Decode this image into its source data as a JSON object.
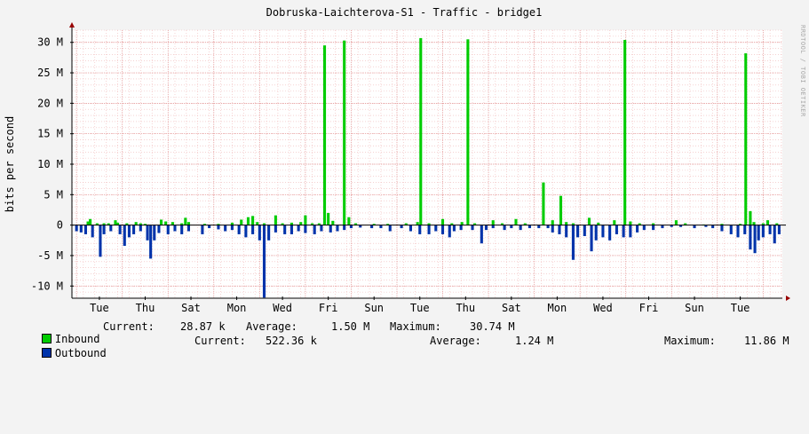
{
  "title": "Dobruska-Laichterova-S1 - Traffic - bridge1",
  "watermark": "RRDTOOL / TOBI OETIKER",
  "chart_data": {
    "type": "area",
    "title": "Dobruska-Laichterova-S1 - Traffic - bridge1",
    "ylabel": "bits per second",
    "xlabel": "",
    "y_unit": "bits per second (M = 1,000,000)",
    "ylim": [
      -12000000,
      32000000
    ],
    "yticks": [
      {
        "value": 30000000,
        "label": "30 M"
      },
      {
        "value": 25000000,
        "label": "25 M"
      },
      {
        "value": 20000000,
        "label": "20 M"
      },
      {
        "value": 15000000,
        "label": "15 M"
      },
      {
        "value": 10000000,
        "label": "10 M"
      },
      {
        "value": 5000000,
        "label": "5 M"
      },
      {
        "value": 0,
        "label": "0"
      },
      {
        "value": -5000000,
        "label": "-5 M"
      },
      {
        "value": -10000000,
        "label": "-10 M"
      }
    ],
    "xlim": [
      0,
      15.52
    ],
    "x_unit": "days since start of window",
    "xticks": [
      {
        "value": 0.6,
        "label": "Tue"
      },
      {
        "value": 1.6,
        "label": "Thu"
      },
      {
        "value": 2.6,
        "label": "Sat"
      },
      {
        "value": 3.6,
        "label": "Mon"
      },
      {
        "value": 4.6,
        "label": "Wed"
      },
      {
        "value": 5.6,
        "label": "Fri"
      },
      {
        "value": 6.6,
        "label": "Sun"
      },
      {
        "value": 7.6,
        "label": "Tue"
      },
      {
        "value": 8.6,
        "label": "Thu"
      },
      {
        "value": 9.6,
        "label": "Sat"
      },
      {
        "value": 10.6,
        "label": "Mon"
      },
      {
        "value": 11.6,
        "label": "Wed"
      },
      {
        "value": 12.6,
        "label": "Fri"
      },
      {
        "value": 13.6,
        "label": "Sun"
      },
      {
        "value": 14.6,
        "label": "Tue"
      }
    ],
    "grid": true,
    "legend_placement": "bottom",
    "series": [
      {
        "name": "Inbound",
        "color": "#00cc00",
        "direction": "up",
        "current": "28.87 k",
        "average": "1.50 M",
        "maximum": "30.74 M",
        "points": [
          [
            0.35,
            0.6
          ],
          [
            0.4,
            1.0
          ],
          [
            0.55,
            0.3
          ],
          [
            0.7,
            0.3
          ],
          [
            0.8,
            0.3
          ],
          [
            0.95,
            0.8
          ],
          [
            1.0,
            0.4
          ],
          [
            1.2,
            0.3
          ],
          [
            1.4,
            0.5
          ],
          [
            1.5,
            0.3
          ],
          [
            1.6,
            0.2
          ],
          [
            1.95,
            0.9
          ],
          [
            2.05,
            0.6
          ],
          [
            2.2,
            0.5
          ],
          [
            2.4,
            0.3
          ],
          [
            2.48,
            1.2
          ],
          [
            2.55,
            0.5
          ],
          [
            2.9,
            0.2
          ],
          [
            3.2,
            0.2
          ],
          [
            3.5,
            0.4
          ],
          [
            3.7,
            0.9
          ],
          [
            3.85,
            1.3
          ],
          [
            3.95,
            1.5
          ],
          [
            4.05,
            0.5
          ],
          [
            4.2,
            0.3
          ],
          [
            4.45,
            1.6
          ],
          [
            4.6,
            0.3
          ],
          [
            4.8,
            0.4
          ],
          [
            5.0,
            0.5
          ],
          [
            5.1,
            1.6
          ],
          [
            5.25,
            0.3
          ],
          [
            5.4,
            0.3
          ],
          [
            5.52,
            29.5
          ],
          [
            5.6,
            2.0
          ],
          [
            5.7,
            0.7
          ],
          [
            5.95,
            30.3
          ],
          [
            6.05,
            1.3
          ],
          [
            6.2,
            0.3
          ],
          [
            6.6,
            0.2
          ],
          [
            6.9,
            0.2
          ],
          [
            7.3,
            0.3
          ],
          [
            7.55,
            0.5
          ],
          [
            7.62,
            30.7
          ],
          [
            7.8,
            0.3
          ],
          [
            8.1,
            1.0
          ],
          [
            8.3,
            0.3
          ],
          [
            8.52,
            0.5
          ],
          [
            8.65,
            30.5
          ],
          [
            8.8,
            0.3
          ],
          [
            9.2,
            0.8
          ],
          [
            9.4,
            0.3
          ],
          [
            9.7,
            1.0
          ],
          [
            9.9,
            0.3
          ],
          [
            10.3,
            7.0
          ],
          [
            10.5,
            0.8
          ],
          [
            10.68,
            4.8
          ],
          [
            10.8,
            0.5
          ],
          [
            10.95,
            0.3
          ],
          [
            11.3,
            1.2
          ],
          [
            11.5,
            0.4
          ],
          [
            11.85,
            0.8
          ],
          [
            12.08,
            30.4
          ],
          [
            12.2,
            0.6
          ],
          [
            12.4,
            0.3
          ],
          [
            12.7,
            0.3
          ],
          [
            13.2,
            0.8
          ],
          [
            13.4,
            0.3
          ],
          [
            13.8,
            0.1
          ],
          [
            14.2,
            0.2
          ],
          [
            14.6,
            0.2
          ],
          [
            14.72,
            28.2
          ],
          [
            14.82,
            2.3
          ],
          [
            14.9,
            0.5
          ],
          [
            15.1,
            0.3
          ],
          [
            15.2,
            0.8
          ],
          [
            15.4,
            0.3
          ]
        ]
      },
      {
        "name": "Outbound",
        "color": "#0033aa",
        "direction": "down",
        "current": "522.36 k",
        "average": "1.24 M",
        "maximum": "11.86 M",
        "points": [
          [
            0.1,
            1.0
          ],
          [
            0.2,
            1.2
          ],
          [
            0.3,
            1.5
          ],
          [
            0.45,
            2.0
          ],
          [
            0.62,
            5.2
          ],
          [
            0.7,
            1.5
          ],
          [
            0.85,
            1.0
          ],
          [
            1.05,
            1.5
          ],
          [
            1.15,
            3.4
          ],
          [
            1.25,
            2.0
          ],
          [
            1.35,
            1.5
          ],
          [
            1.5,
            1.0
          ],
          [
            1.65,
            2.5
          ],
          [
            1.72,
            5.5
          ],
          [
            1.8,
            2.5
          ],
          [
            1.9,
            1.3
          ],
          [
            2.1,
            1.5
          ],
          [
            2.25,
            1.0
          ],
          [
            2.4,
            1.5
          ],
          [
            2.55,
            1.0
          ],
          [
            2.85,
            1.5
          ],
          [
            3.0,
            0.5
          ],
          [
            3.2,
            0.7
          ],
          [
            3.35,
            1.0
          ],
          [
            3.5,
            0.8
          ],
          [
            3.65,
            1.5
          ],
          [
            3.8,
            2.0
          ],
          [
            3.95,
            1.5
          ],
          [
            4.1,
            2.5
          ],
          [
            4.2,
            11.9
          ],
          [
            4.3,
            2.5
          ],
          [
            4.45,
            1.2
          ],
          [
            4.65,
            1.5
          ],
          [
            4.8,
            1.5
          ],
          [
            4.95,
            1.0
          ],
          [
            5.1,
            1.3
          ],
          [
            5.3,
            1.5
          ],
          [
            5.45,
            1.0
          ],
          [
            5.65,
            1.2
          ],
          [
            5.8,
            1.0
          ],
          [
            5.95,
            0.8
          ],
          [
            6.1,
            0.5
          ],
          [
            6.3,
            0.4
          ],
          [
            6.55,
            0.5
          ],
          [
            6.75,
            0.5
          ],
          [
            6.95,
            1.0
          ],
          [
            7.2,
            0.5
          ],
          [
            7.4,
            1.0
          ],
          [
            7.6,
            1.5
          ],
          [
            7.8,
            1.5
          ],
          [
            7.95,
            1.0
          ],
          [
            8.1,
            1.5
          ],
          [
            8.25,
            2.0
          ],
          [
            8.35,
            1.0
          ],
          [
            8.5,
            0.8
          ],
          [
            8.75,
            0.8
          ],
          [
            8.95,
            3.0
          ],
          [
            9.05,
            0.8
          ],
          [
            9.2,
            0.5
          ],
          [
            9.45,
            0.8
          ],
          [
            9.6,
            0.5
          ],
          [
            9.8,
            0.8
          ],
          [
            10.0,
            0.5
          ],
          [
            10.2,
            0.5
          ],
          [
            10.4,
            0.5
          ],
          [
            10.5,
            1.2
          ],
          [
            10.65,
            1.5
          ],
          [
            10.8,
            2.0
          ],
          [
            10.95,
            5.7
          ],
          [
            11.05,
            2.0
          ],
          [
            11.2,
            1.8
          ],
          [
            11.35,
            4.3
          ],
          [
            11.45,
            2.5
          ],
          [
            11.6,
            2.0
          ],
          [
            11.75,
            2.5
          ],
          [
            11.9,
            1.5
          ],
          [
            12.05,
            2.0
          ],
          [
            12.2,
            2.0
          ],
          [
            12.35,
            1.2
          ],
          [
            12.5,
            0.8
          ],
          [
            12.7,
            0.8
          ],
          [
            12.9,
            0.5
          ],
          [
            13.1,
            0.3
          ],
          [
            13.3,
            0.3
          ],
          [
            13.6,
            0.5
          ],
          [
            13.85,
            0.3
          ],
          [
            14.0,
            0.5
          ],
          [
            14.2,
            1.0
          ],
          [
            14.4,
            1.5
          ],
          [
            14.55,
            2.0
          ],
          [
            14.7,
            1.5
          ],
          [
            14.82,
            4.0
          ],
          [
            14.92,
            4.6
          ],
          [
            15.0,
            2.5
          ],
          [
            15.1,
            2.0
          ],
          [
            15.25,
            1.5
          ],
          [
            15.35,
            3.0
          ],
          [
            15.45,
            1.5
          ]
        ]
      }
    ]
  },
  "legend": {
    "current_label": "Current:",
    "average_label": "Average:",
    "maximum_label": "Maximum:"
  }
}
